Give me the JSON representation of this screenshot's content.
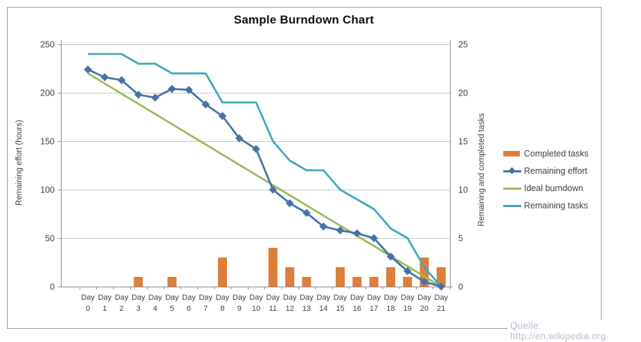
{
  "title": "Sample Burndown Chart",
  "watermark": "Quelle: http://en.wikipedia.org",
  "colors": {
    "bars": "#dd7e3b",
    "effort": "#4573a7",
    "ideal": "#9bbb59",
    "tasks": "#41a6be",
    "gridline": "#c6c6c6",
    "axis": "#8c8c8c",
    "text": "#3f3f46",
    "watermark": "#b9bdd1"
  },
  "chart_data": {
    "type": "bar+line combo",
    "categories": [
      "Day 0",
      "Day 1",
      "Day 2",
      "Day 3",
      "Day 4",
      "Day 5",
      "Day 6",
      "Day 7",
      "Day 8",
      "Day 9",
      "Day 10",
      "Day 11",
      "Day 12",
      "Day 13",
      "Day 14",
      "Day 15",
      "Day 16",
      "Day 17",
      "Day 18",
      "Day 19",
      "Day 20",
      "Day 21"
    ],
    "series": [
      {
        "name": "Completed tasks",
        "type": "bar",
        "axis": "right",
        "values": [
          0,
          0,
          0,
          1,
          0,
          1,
          0,
          0,
          3,
          0,
          0,
          4,
          2,
          1,
          0,
          2,
          1,
          1,
          2,
          1,
          3,
          2
        ]
      },
      {
        "name": "Remaining effort",
        "type": "line",
        "marker": "diamond",
        "axis": "left",
        "values": [
          224,
          216,
          213,
          198,
          195,
          204,
          203,
          188,
          176,
          153,
          142,
          100,
          86,
          76,
          62,
          58,
          55,
          50,
          31,
          16,
          5,
          0
        ]
      },
      {
        "name": "Ideal burndown",
        "type": "line",
        "axis": "left",
        "values": [
          220,
          209.5,
          199,
          188.6,
          178.1,
          167.6,
          157.1,
          146.7,
          136.2,
          125.7,
          115.2,
          104.8,
          94.3,
          83.8,
          73.3,
          62.9,
          52.4,
          41.9,
          31.4,
          21,
          10.5,
          0
        ]
      },
      {
        "name": "Remaining tasks",
        "type": "line",
        "axis": "right",
        "values": [
          24,
          24,
          24,
          23,
          23,
          22,
          22,
          22,
          19,
          19,
          19,
          15,
          13,
          12,
          12,
          10,
          9,
          8,
          6,
          5,
          2,
          0
        ]
      }
    ],
    "left_axis": {
      "label": "Remaining effort (hours)",
      "ticks": [
        0,
        50,
        100,
        150,
        200,
        250
      ],
      "range": [
        0,
        250
      ]
    },
    "right_axis": {
      "label": "Remaining and completed tasks",
      "ticks": [
        0,
        5,
        10,
        15,
        20,
        25
      ],
      "range": [
        0,
        25
      ]
    },
    "grid": true,
    "legend_position": "right"
  }
}
